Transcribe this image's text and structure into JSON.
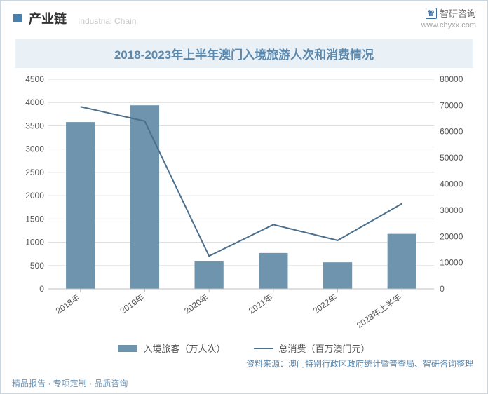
{
  "header": {
    "section_label": "产业链",
    "section_sub": "Industrial Chain",
    "diamond_color": "#4a7eab",
    "logo_name": "智研咨询",
    "logo_url": "www.chyxx.com",
    "logo_mark": "智"
  },
  "chart": {
    "type": "bar+line",
    "title": "2018-2023年上半年澳门入境旅游人次和消费情况",
    "title_color": "#5b88ad",
    "title_bg": "#eaf1f6",
    "title_fontsize": 17,
    "background_color": "#ffffff",
    "grid_color": "#dcdcdc",
    "categories": [
      "2018年",
      "2019年",
      "2020年",
      "2021年",
      "2022年",
      "2023年上半年"
    ],
    "series_bar": {
      "name": "入境旅客（万人次）",
      "color": "#6e94ae",
      "values": [
        3580,
        3940,
        590,
        770,
        570,
        1180
      ]
    },
    "series_line": {
      "name": "总消费（百万澳门元）",
      "color": "#4b6f8d",
      "values": [
        69500,
        64000,
        12500,
        24500,
        18500,
        32500
      ],
      "line_width": 2
    },
    "y_left": {
      "min": 0,
      "max": 4500,
      "step": 500
    },
    "y_right": {
      "min": 0,
      "max": 80000,
      "step": 10000
    },
    "bar_width_ratio": 0.45,
    "axis_fontsize": 12,
    "axis_color": "#555555",
    "label_rotation_deg": -35
  },
  "legend": {
    "bar_label": "入境旅客（万人次）",
    "line_label": "总消费（百万澳门元）"
  },
  "source": "资料来源：澳门特别行政区政府统计暨普查局、智研咨询整理",
  "footer": "精品报告 · 专项定制 · 品质咨询",
  "watermark": "智研咨询"
}
